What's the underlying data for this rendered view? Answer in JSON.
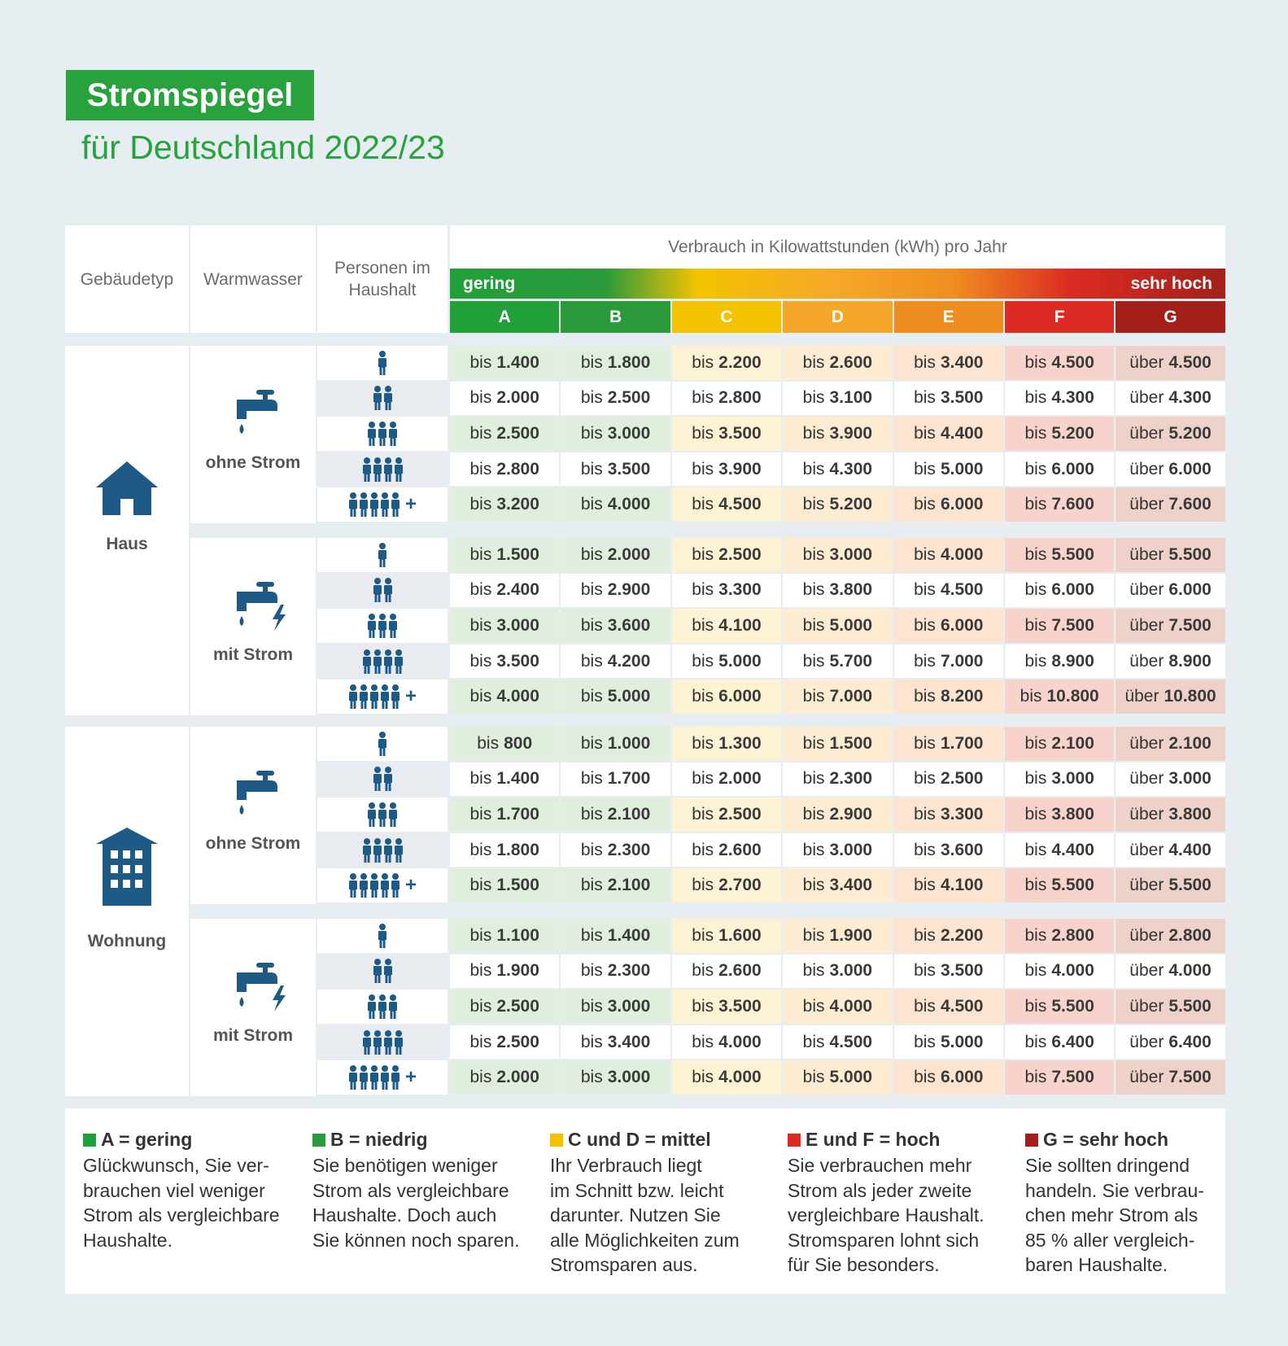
{
  "header": {
    "title": "Stromspiegel",
    "subtitle": "für Deutschland 2022/23"
  },
  "table": {
    "columns": [
      "Gebäudetyp",
      "Warmwasser",
      "Personen im Haushalt"
    ],
    "consumption_label": "Verbrauch in Kilowattstunden (kWh) pro Jahr",
    "scale_low": "gering",
    "scale_high": "sehr hoch",
    "classes": [
      {
        "label": "A",
        "color": "#22a03a",
        "tint": "#dfeedd"
      },
      {
        "label": "B",
        "color": "#2b9a3b",
        "tint": "#dfeedd"
      },
      {
        "label": "C",
        "color": "#f3c300",
        "tint": "#fdf2d4"
      },
      {
        "label": "D",
        "color": "#f5a72a",
        "tint": "#fdebd2"
      },
      {
        "label": "E",
        "color": "#f08d1f",
        "tint": "#fce4d0"
      },
      {
        "label": "F",
        "color": "#dc2b23",
        "tint": "#f7d3cb"
      },
      {
        "label": "G",
        "color": "#a3201a",
        "tint": "#eed2c9"
      }
    ],
    "prefix_upto": "bis",
    "prefix_over": "über",
    "persons": [
      1,
      2,
      3,
      4,
      5
    ],
    "persons_more": "+",
    "groups": [
      {
        "building": "Haus",
        "sections": [
          {
            "water": "ohne Strom",
            "rows": [
              [
                "1.400",
                "1.800",
                "2.200",
                "2.600",
                "3.400",
                "4.500",
                "4.500"
              ],
              [
                "2.000",
                "2.500",
                "2.800",
                "3.100",
                "3.500",
                "4.300",
                "4.300"
              ],
              [
                "2.500",
                "3.000",
                "3.500",
                "3.900",
                "4.400",
                "5.200",
                "5.200"
              ],
              [
                "2.800",
                "3.500",
                "3.900",
                "4.300",
                "5.000",
                "6.000",
                "6.000"
              ],
              [
                "3.200",
                "4.000",
                "4.500",
                "5.200",
                "6.000",
                "7.600",
                "7.600"
              ]
            ]
          },
          {
            "water": "mit Strom",
            "rows": [
              [
                "1.500",
                "2.000",
                "2.500",
                "3.000",
                "4.000",
                "5.500",
                "5.500"
              ],
              [
                "2.400",
                "2.900",
                "3.300",
                "3.800",
                "4.500",
                "6.000",
                "6.000"
              ],
              [
                "3.000",
                "3.600",
                "4.100",
                "5.000",
                "6.000",
                "7.500",
                "7.500"
              ],
              [
                "3.500",
                "4.200",
                "5.000",
                "5.700",
                "7.000",
                "8.900",
                "8.900"
              ],
              [
                "4.000",
                "5.000",
                "6.000",
                "7.000",
                "8.200",
                "10.800",
                "10.800"
              ]
            ]
          }
        ]
      },
      {
        "building": "Wohnung",
        "sections": [
          {
            "water": "ohne Strom",
            "rows": [
              [
                "800",
                "1.000",
                "1.300",
                "1.500",
                "1.700",
                "2.100",
                "2.100"
              ],
              [
                "1.400",
                "1.700",
                "2.000",
                "2.300",
                "2.500",
                "3.000",
                "3.000"
              ],
              [
                "1.700",
                "2.100",
                "2.500",
                "2.900",
                "3.300",
                "3.800",
                "3.800"
              ],
              [
                "1.800",
                "2.300",
                "2.600",
                "3.000",
                "3.600",
                "4.400",
                "4.400"
              ],
              [
                "1.500",
                "2.100",
                "2.700",
                "3.400",
                "4.100",
                "5.500",
                "5.500"
              ]
            ]
          },
          {
            "water": "mit Strom",
            "rows": [
              [
                "1.100",
                "1.400",
                "1.600",
                "1.900",
                "2.200",
                "2.800",
                "2.800"
              ],
              [
                "1.900",
                "2.300",
                "2.600",
                "3.000",
                "3.500",
                "4.000",
                "4.000"
              ],
              [
                "2.500",
                "3.000",
                "3.500",
                "4.000",
                "4.500",
                "5.500",
                "5.500"
              ],
              [
                "2.500",
                "3.400",
                "4.000",
                "4.500",
                "5.000",
                "6.400",
                "6.400"
              ],
              [
                "2.000",
                "3.000",
                "4.000",
                "5.000",
                "6.000",
                "7.500",
                "7.500"
              ]
            ]
          }
        ]
      }
    ]
  },
  "legend": [
    {
      "title": "A = gering",
      "color": "#22a03a",
      "text": "Glückwunsch, Sie ver-\nbrauchen viel weniger\nStrom als vergleichbare\nHaushalte."
    },
    {
      "title": "B = niedrig",
      "color": "#2b9a3b",
      "text": "Sie benötigen weniger\nStrom als vergleichbare\nHaushalte. Doch auch\nSie können noch sparen."
    },
    {
      "title": "C und D = mittel",
      "color": "#f3c300",
      "text": "Ihr Verbrauch liegt\nim Schnitt bzw. leicht\ndarunter. Nutzen Sie\nalle Möglichkeiten zum\nStromsparen aus."
    },
    {
      "title": "E und F = hoch",
      "color": "#dc2b23",
      "text": "Sie verbrauchen mehr\nStrom als jeder zweite\nvergleichbare Haushalt.\nStromsparen lohnt sich\nfür Sie besonders."
    },
    {
      "title": "G = sehr hoch",
      "color": "#a3201a",
      "text": "Sie sollten dringend\nhandeln. Sie verbrau-\nchen mehr Strom als\n85 % aller vergleich-\nbaren Haushalte."
    }
  ]
}
